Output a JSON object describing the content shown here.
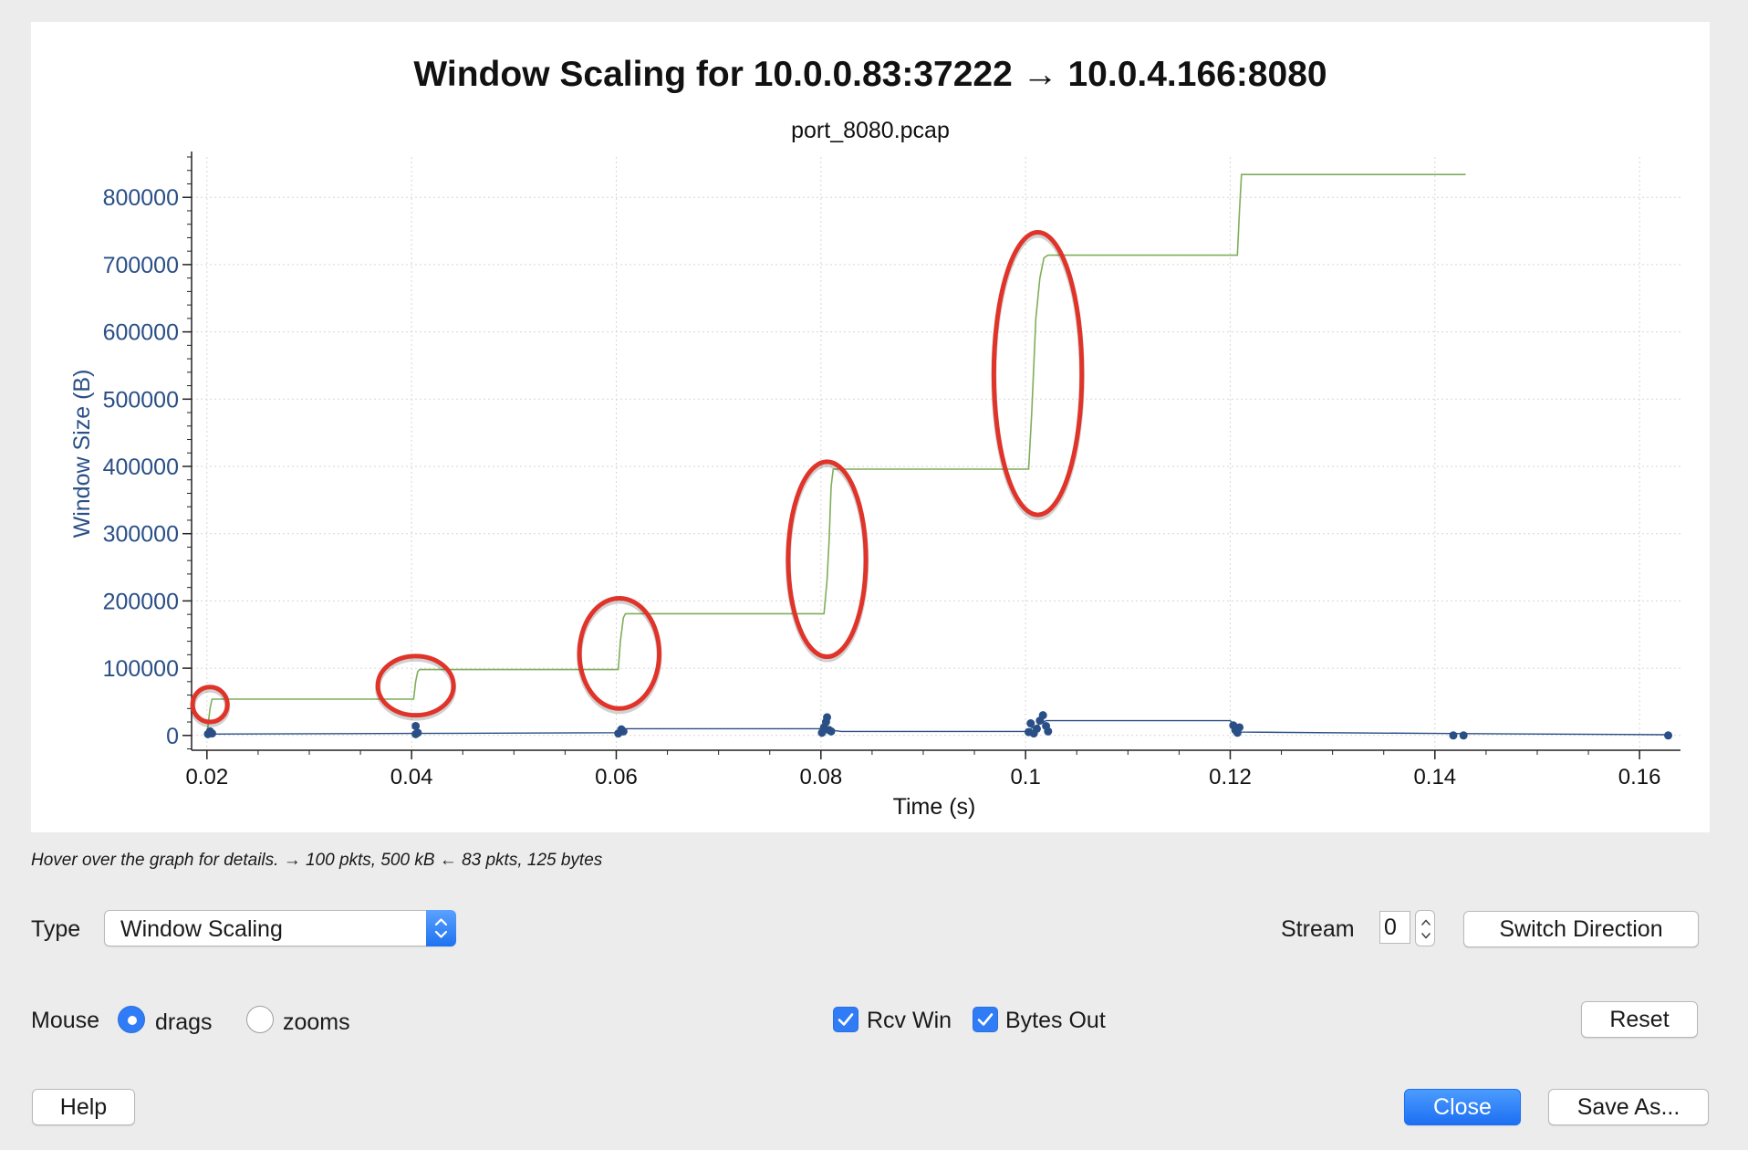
{
  "chart": {
    "title": "Window Scaling for 10.0.0.83:37222 → 10.0.4.166:8080",
    "subtitle": "port_8080.pcap",
    "xlabel": "Time (s)",
    "ylabel": "Window Size (B)"
  },
  "chart_data": {
    "type": "line",
    "title": "Window Scaling for 10.0.0.83:37222 → 10.0.4.166:8080",
    "subtitle": "port_8080.pcap",
    "xlabel": "Time (s)",
    "ylabel": "Window Size (B)",
    "xlim": [
      0.0185,
      0.164
    ],
    "ylim": [
      -22000,
      860000
    ],
    "x_ticks": [
      0.02,
      0.04,
      0.06,
      0.08,
      0.1,
      0.12,
      0.14,
      0.16
    ],
    "x_tick_labels": [
      "0.02",
      "0.04",
      "0.06",
      "0.08",
      "0.1",
      "0.12",
      "0.14",
      "0.16"
    ],
    "y_ticks": [
      0,
      100000,
      200000,
      300000,
      400000,
      500000,
      600000,
      700000,
      800000
    ],
    "y_tick_labels": [
      "0",
      "100000",
      "200000",
      "300000",
      "400000",
      "500000",
      "600000",
      "700000",
      "800000"
    ],
    "grid": true,
    "series": [
      {
        "color": "#7fae5a",
        "x": [
          0.02,
          0.0203,
          0.0205,
          0.0402,
          0.0404,
          0.0406,
          0.0408,
          0.0602,
          0.0604,
          0.0607,
          0.0609,
          0.0803,
          0.0806,
          0.0808,
          0.081,
          0.0812,
          0.1003,
          0.1006,
          0.101,
          0.1014,
          0.1018,
          0.1022,
          0.1207,
          0.1209,
          0.1211,
          0.143
        ],
        "y": [
          0,
          40000,
          54000,
          54000,
          80000,
          95000,
          98000,
          98000,
          140000,
          175000,
          181000,
          181000,
          230000,
          290000,
          370000,
          396000,
          396000,
          480000,
          620000,
          680000,
          710000,
          714000,
          714000,
          780000,
          834000,
          834000
        ]
      },
      {
        "color": "#2a4f86",
        "x": [
          0.02,
          0.04,
          0.06,
          0.061,
          0.08,
          0.082,
          0.1,
          0.102,
          0.12,
          0.121,
          0.14,
          0.1628
        ],
        "y": [
          2000,
          3000,
          4000,
          10000,
          10000,
          6000,
          6000,
          22000,
          22000,
          5000,
          3000,
          1000
        ]
      }
    ],
    "markers": [
      {
        "x": 0.0201,
        "y": 2000
      },
      {
        "x": 0.0203,
        "y": 6000
      },
      {
        "x": 0.0205,
        "y": 3000
      },
      {
        "x": 0.0404,
        "y": 2000
      },
      {
        "x": 0.0404,
        "y": 14000
      },
      {
        "x": 0.0406,
        "y": 4000
      },
      {
        "x": 0.0602,
        "y": 3000
      },
      {
        "x": 0.0605,
        "y": 9000
      },
      {
        "x": 0.0607,
        "y": 6000
      },
      {
        "x": 0.0801,
        "y": 4000
      },
      {
        "x": 0.0803,
        "y": 12000
      },
      {
        "x": 0.0805,
        "y": 20000
      },
      {
        "x": 0.0806,
        "y": 27000
      },
      {
        "x": 0.0808,
        "y": 8000
      },
      {
        "x": 0.081,
        "y": 6000
      },
      {
        "x": 0.1003,
        "y": 5000
      },
      {
        "x": 0.1005,
        "y": 18000
      },
      {
        "x": 0.1008,
        "y": 3000
      },
      {
        "x": 0.1011,
        "y": 10000
      },
      {
        "x": 0.1014,
        "y": 22000
      },
      {
        "x": 0.1017,
        "y": 30000
      },
      {
        "x": 0.102,
        "y": 14000
      },
      {
        "x": 0.1022,
        "y": 6000
      },
      {
        "x": 0.1203,
        "y": 15000
      },
      {
        "x": 0.1205,
        "y": 8000
      },
      {
        "x": 0.1207,
        "y": 4000
      },
      {
        "x": 0.1209,
        "y": 12000
      },
      {
        "x": 0.1418,
        "y": 0
      },
      {
        "x": 0.1428,
        "y": 0
      },
      {
        "x": 0.1628,
        "y": 0
      }
    ],
    "annotations": [
      {
        "type": "ellipse",
        "color": "#e0342a",
        "cx": 0.0203,
        "cy": 46000,
        "rx": 0.0017,
        "ry": 26000
      },
      {
        "type": "ellipse",
        "color": "#e0342a",
        "cx": 0.0404,
        "cy": 74000,
        "rx": 0.0037,
        "ry": 44000
      },
      {
        "type": "ellipse",
        "color": "#e0342a",
        "cx": 0.0603,
        "cy": 122000,
        "rx": 0.0039,
        "ry": 82000
      },
      {
        "type": "ellipse",
        "color": "#e0342a",
        "cx": 0.0806,
        "cy": 262000,
        "rx": 0.0038,
        "ry": 145000
      },
      {
        "type": "ellipse",
        "color": "#e0342a",
        "cx": 0.1012,
        "cy": 538000,
        "rx": 0.0043,
        "ry": 210000
      }
    ]
  },
  "hint_text": "Hover over the graph for details. → 100 pkts, 500 kB ← 83 pkts, 125 bytes",
  "controls": {
    "type_label": "Type",
    "type_value": "Window Scaling",
    "stream_label": "Stream",
    "stream_value": "0",
    "switch_direction": "Switch Direction",
    "mouse_label": "Mouse",
    "drags_label": "drags",
    "zooms_label": "zooms",
    "rcv_win_label": "Rcv Win",
    "bytes_out_label": "Bytes Out",
    "reset": "Reset",
    "help": "Help",
    "close": "Close",
    "save_as": "Save As..."
  },
  "colors": {
    "green_line": "#7fae5a",
    "blue_line": "#2a4f86",
    "ellipse": "#e0342a",
    "axis_text": "#2a4f86",
    "accent": "#2f7cf6"
  }
}
